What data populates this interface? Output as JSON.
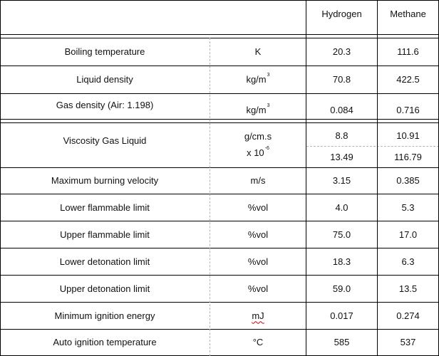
{
  "table": {
    "header": {
      "col1": "Hydrogen",
      "col2": "Methane"
    },
    "rows": [
      {
        "property": "Boiling temperature",
        "unit": "K",
        "hydrogen": "20.3",
        "methane": "111.6"
      },
      {
        "property": "Liquid density",
        "unit": "kg/m",
        "unit_sup": "3",
        "hydrogen": "70.8",
        "methane": "422.5"
      },
      {
        "property": "Gas density (Air: 1.198)",
        "unit": "kg/m",
        "unit_sup": "3",
        "hydrogen": "0.084",
        "methane": "0.716"
      },
      {
        "property": "Viscosity Gas Liquid",
        "unit_line1": "g/cm.s",
        "unit_line2": "x 10",
        "unit_line2_sup": "-6",
        "hydrogen_gas": "8.8",
        "methane_gas": "10.91",
        "hydrogen_liquid": "13.49",
        "methane_liquid": "116.79"
      },
      {
        "property": "Maximum burning velocity",
        "unit": "m/s",
        "hydrogen": "3.15",
        "methane": "0.385"
      },
      {
        "property": "Lower flammable limit",
        "unit": "%vol",
        "hydrogen": "4.0",
        "methane": "5.3"
      },
      {
        "property": "Upper flammable limit",
        "unit": "%vol",
        "hydrogen": "75.0",
        "methane": "17.0"
      },
      {
        "property": "Lower detonation limit",
        "unit": "%vol",
        "hydrogen": "18.3",
        "methane": "6.3"
      },
      {
        "property": "Upper detonation limit",
        "unit": "%vol",
        "hydrogen": "59.0",
        "methane": "13.5"
      },
      {
        "property": "Minimum ignition energy",
        "unit": "mJ",
        "hydrogen": "0.017",
        "methane": "0.274"
      },
      {
        "property": "Auto ignition temperature",
        "unit": "°C",
        "hydrogen": "585",
        "methane": "537"
      }
    ]
  }
}
